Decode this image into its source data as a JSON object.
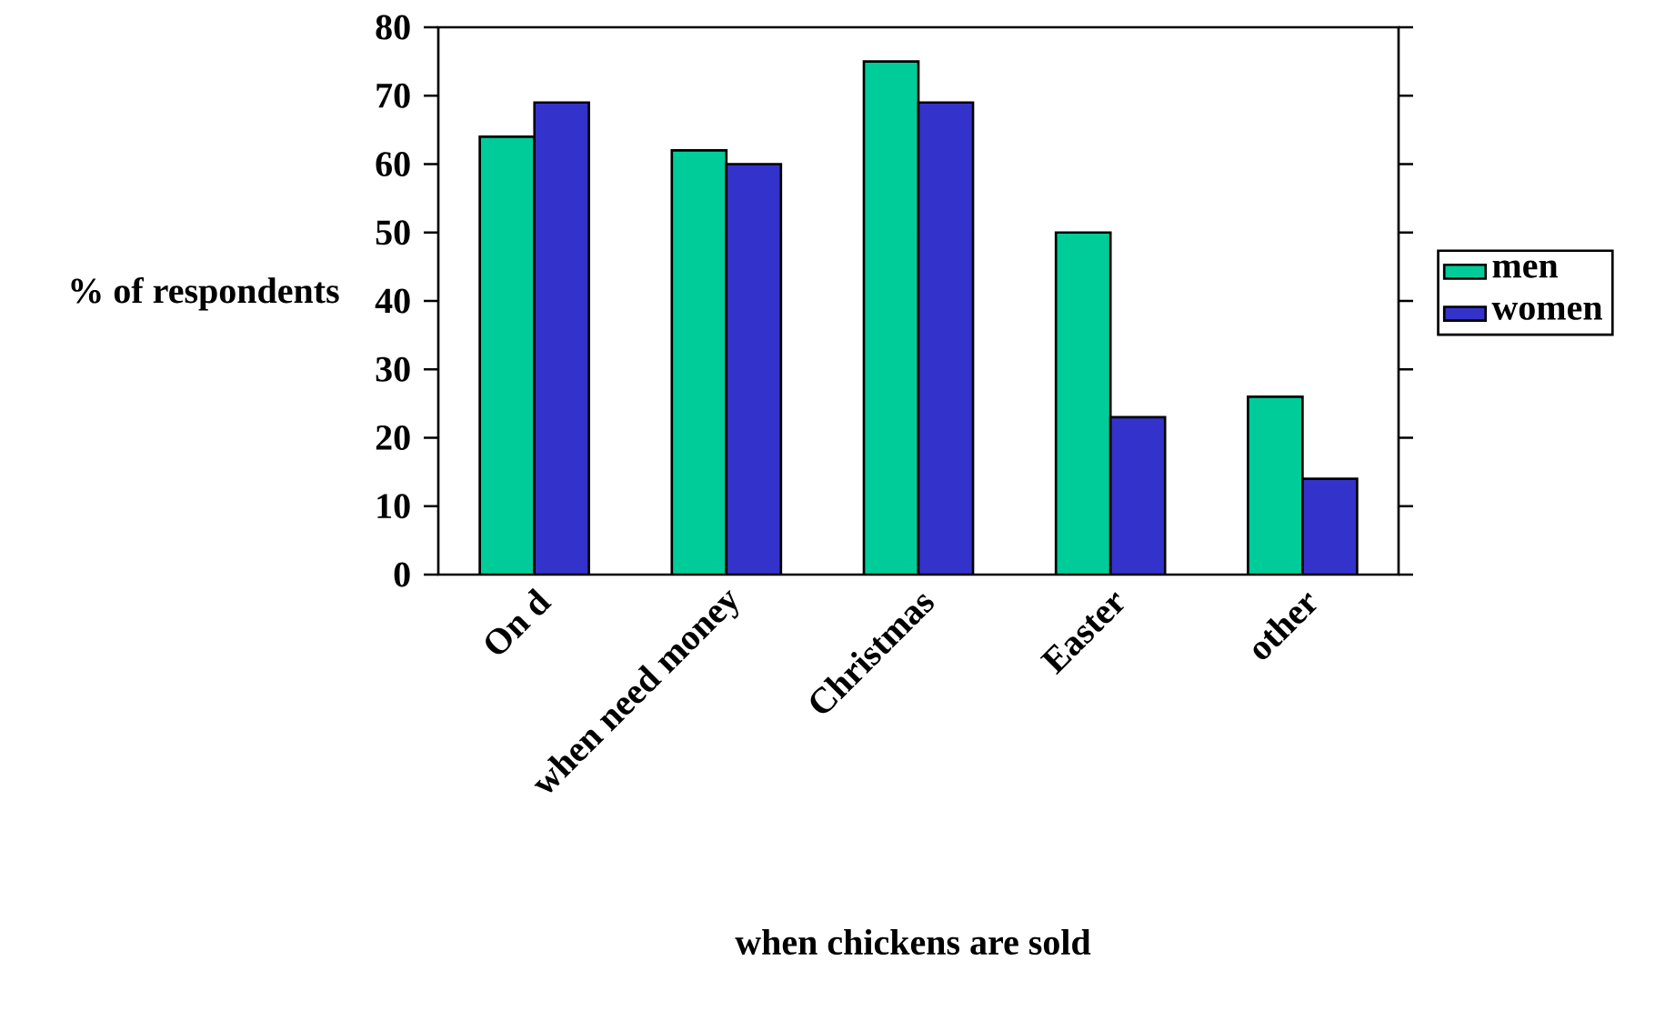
{
  "chart_data": {
    "type": "bar",
    "xlabel": "when chickens are sold",
    "ylabel": "% of respondents",
    "categories": [
      "On d",
      "when need money",
      "Christmas",
      "Easter",
      "other"
    ],
    "series": [
      {
        "name": "men",
        "color": "#00cc99",
        "values": [
          64,
          62,
          75,
          50,
          26
        ]
      },
      {
        "name": "women",
        "color": "#3333cc",
        "values": [
          69,
          60,
          69,
          23,
          14
        ]
      }
    ],
    "ylim": [
      0,
      80
    ],
    "yticks": [
      0,
      10,
      20,
      30,
      40,
      50,
      60,
      70,
      80
    ],
    "grid": false,
    "legend": "right"
  }
}
